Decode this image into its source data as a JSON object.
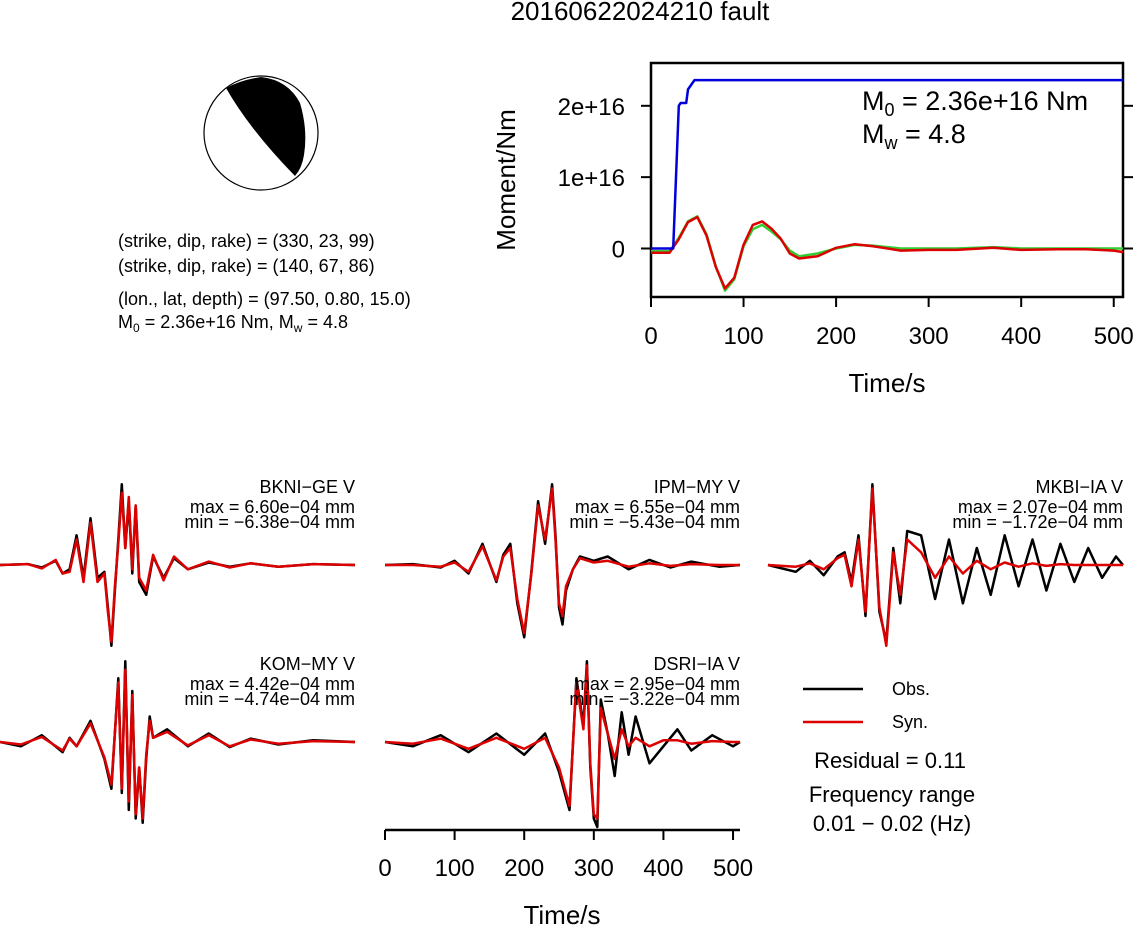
{
  "title": "20160622024210 fault",
  "mechanism": {
    "plane1": "(strike, dip, rake) = (330, 23, 99)",
    "plane2": "(strike, dip, rake) = (140, 67, 86)",
    "location": "(lon., lat, depth) = (97.50, 0.80, 15.0)",
    "m0_prefix": "M",
    "m0_sub": "0",
    "m0_rest": " = 2.36e+16 Nm, M",
    "mw_sub": "w",
    "mw_rest": " = 4.8"
  },
  "moment_plot": {
    "ylabel": "Moment/Nm",
    "xlabel": "Time/s",
    "m0_prefix": "M",
    "m0_sub": "0",
    "m0_rest": " = 2.36e+16 Nm",
    "mw_prefix": "M",
    "mw_sub": "w",
    "mw_rest": " = 4.8"
  },
  "wave_xlabel": "Time/s",
  "legend": {
    "obs": "Obs.",
    "syn": "Syn.",
    "residual": "Residual = 0.11",
    "freq_label": "Frequency range",
    "freq_value": "0.01 − 0.02 (Hz)"
  },
  "colors": {
    "moment": "#0000dd",
    "obs": "#000000",
    "syn": "#dd0000",
    "rate_green": "#33cc33",
    "rate_red": "#dd0000",
    "beachball": "#000000"
  },
  "stations": [
    {
      "name": "BKNI−GE V",
      "max": "max = 6.60e−04 mm",
      "min": "min = −6.38e−04 mm"
    },
    {
      "name": "IPM−MY V",
      "max": "max = 6.55e−04 mm",
      "min": "min = −5.43e−04 mm"
    },
    {
      "name": "MKBI−IA V",
      "max": "max = 2.07e−04 mm",
      "min": "min = −1.72e−04 mm"
    },
    {
      "name": "KOM−MY V",
      "max": "max = 4.42e−04 mm",
      "min": "min = −4.74e−04 mm"
    },
    {
      "name": "DSRI−IA V",
      "max": "max = 2.95e−04 mm",
      "min": "min = −3.22e−04 mm"
    }
  ],
  "chart_data": [
    {
      "type": "line",
      "title": "",
      "xlabel": "Time/s",
      "ylabel": "Moment/Nm",
      "xlim": [
        0,
        510
      ],
      "ylim": [
        -6800000000000000.0,
        2.6e+16
      ],
      "x_ticks": [
        0,
        100,
        200,
        300,
        400,
        500
      ],
      "y_ticks": [
        0,
        1e+16,
        2e+16
      ],
      "y_tick_labels": [
        "0",
        "1e+16",
        "2e+16"
      ],
      "series": [
        {
          "name": "cumulative moment",
          "color": "#0000dd",
          "x": [
            0,
            24,
            30,
            32,
            38,
            40,
            47,
            49,
            510
          ],
          "y": [
            0,
            0,
            2e+16,
            2.04e+16,
            2.04e+16,
            2.23e+16,
            2.36e+16,
            2.36e+16,
            2.36e+16
          ]
        },
        {
          "name": "moment rate (green)",
          "color": "#33cc33",
          "x": [
            0,
            20,
            30,
            40,
            50,
            60,
            70,
            80,
            90,
            100,
            110,
            120,
            130,
            140,
            150,
            160,
            180,
            200,
            220,
            240,
            270,
            300,
            330,
            370,
            400,
            440,
            470,
            510
          ],
          "y": [
            -400000000000000.0,
            -400000000000000.0,
            1500000000000000.0,
            3800000000000000.0,
            4500000000000000.0,
            2000000000000000.0,
            -2500000000000000.0,
            -5900000000000000.0,
            -4300000000000000.0,
            300000000000000.0,
            2700000000000000.0,
            3300000000000000.0,
            2400000000000000.0,
            1300000000000000.0,
            -300000000000000.0,
            -1100000000000000.0,
            -700000000000000.0,
            0.0,
            500000000000000.0,
            400000000000000.0,
            0.0,
            0.0,
            0.0,
            200000000000000.0,
            0.0,
            0.0,
            0.0,
            0.0
          ]
        },
        {
          "name": "moment rate (red)",
          "color": "#dd0000",
          "x": [
            0,
            20,
            30,
            40,
            50,
            60,
            70,
            80,
            90,
            100,
            110,
            120,
            130,
            140,
            150,
            160,
            180,
            200,
            220,
            240,
            270,
            300,
            330,
            370,
            400,
            440,
            470,
            500,
            510
          ],
          "y": [
            -600000000000000.0,
            -600000000000000.0,
            1300000000000000.0,
            3700000000000000.0,
            4400000000000000.0,
            1800000000000000.0,
            -2600000000000000.0,
            -5600000000000000.0,
            -4100000000000000.0,
            500000000000000.0,
            3300000000000000.0,
            3800000000000000.0,
            2800000000000000.0,
            1400000000000000.0,
            -700000000000000.0,
            -1400000000000000.0,
            -1100000000000000.0,
            100000000000000.0,
            600000000000000.0,
            300000000000000.0,
            -300000000000000.0,
            -200000000000000.0,
            -200000000000000.0,
            100000000000000.0,
            -200000000000000.0,
            -100000000000000.0,
            -100000000000000.0,
            -300000000000000.0,
            -500000000000000.0
          ]
        }
      ]
    },
    {
      "type": "line",
      "title": "",
      "xlabel": "Time/s",
      "ylabel": "",
      "xlim": [
        0,
        510
      ],
      "x_ticks": [
        0,
        100,
        200,
        300,
        400,
        500
      ],
      "panels": [
        {
          "station": "BKNI−GE V",
          "max": 0.00066,
          "min": -0.000638,
          "x": [
            0,
            40,
            60,
            80,
            90,
            100,
            110,
            120,
            130,
            140,
            150,
            155,
            160,
            165,
            170,
            175,
            180,
            185,
            190,
            195,
            200,
            210,
            220,
            235,
            250,
            270,
            300,
            330,
            360,
            400,
            450,
            510
          ],
          "obs": [
            0,
            0.01,
            -0.03,
            0.05,
            -0.1,
            -0.05,
            0.35,
            -0.15,
            0.55,
            -0.15,
            -0.08,
            -0.5,
            -0.95,
            -0.3,
            0.3,
            0.95,
            0.2,
            0.75,
            -0.1,
            0.7,
            -0.2,
            -0.35,
            0.1,
            -0.15,
            0.08,
            -0.05,
            0.03,
            -0.02,
            0.02,
            -0.02,
            0.01,
            0
          ],
          "syn": [
            0,
            0.01,
            -0.04,
            0.06,
            -0.1,
            -0.08,
            0.3,
            -0.2,
            0.5,
            -0.2,
            -0.1,
            -0.55,
            -0.9,
            -0.25,
            0.25,
            0.85,
            0.2,
            0.8,
            -0.05,
            0.7,
            -0.15,
            -0.3,
            0.12,
            -0.18,
            0.1,
            -0.05,
            0.04,
            -0.03,
            0.02,
            -0.02,
            0.01,
            0
          ]
        },
        {
          "station": "IPM−MY V",
          "max": 0.000655,
          "min": -0.000543,
          "x": [
            0,
            40,
            80,
            100,
            120,
            140,
            160,
            170,
            180,
            190,
            200,
            210,
            220,
            230,
            240,
            245,
            250,
            255,
            260,
            270,
            280,
            300,
            320,
            350,
            380,
            410,
            440,
            480,
            510
          ],
          "obs": [
            0,
            0.01,
            -0.03,
            0.05,
            -0.1,
            0.25,
            -0.2,
            0.12,
            0.25,
            -0.45,
            -0.85,
            -0.1,
            0.75,
            0.25,
            0.95,
            0.35,
            -0.5,
            -0.7,
            -0.3,
            -0.05,
            0.1,
            0.05,
            0.1,
            -0.05,
            0.06,
            -0.03,
            0.04,
            -0.02,
            0
          ],
          "syn": [
            0,
            0.0,
            -0.02,
            0.03,
            -0.08,
            0.22,
            -0.18,
            0.1,
            0.2,
            -0.4,
            -0.8,
            -0.12,
            0.7,
            0.3,
            0.9,
            0.3,
            -0.45,
            -0.6,
            -0.25,
            -0.05,
            0.08,
            0.03,
            0.05,
            -0.02,
            0.02,
            -0.01,
            0.01,
            0.0,
            0
          ]
        },
        {
          "station": "MKBI−IA V",
          "max": 0.000207,
          "min": -0.000172,
          "x": [
            0,
            40,
            60,
            80,
            100,
            110,
            120,
            130,
            140,
            150,
            160,
            170,
            180,
            190,
            200,
            220,
            240,
            260,
            280,
            300,
            320,
            340,
            360,
            380,
            400,
            420,
            440,
            460,
            480,
            500,
            510
          ],
          "obs": [
            0,
            -0.08,
            0.05,
            -0.12,
            0.1,
            0.15,
            -0.2,
            0.35,
            -0.6,
            0.95,
            -0.55,
            -0.9,
            0.2,
            -0.45,
            0.4,
            0.35,
            -0.4,
            0.3,
            -0.45,
            0.2,
            -0.35,
            0.35,
            -0.25,
            0.3,
            -0.3,
            0.25,
            -0.2,
            0.2,
            -0.15,
            0.1,
            0
          ],
          "syn": [
            0,
            -0.02,
            0.02,
            -0.05,
            0.08,
            0.12,
            -0.25,
            0.3,
            -0.55,
            0.9,
            -0.5,
            -0.95,
            0.15,
            -0.35,
            0.3,
            0.15,
            -0.15,
            0.1,
            -0.1,
            0.05,
            -0.05,
            0.03,
            -0.02,
            0.02,
            -0.01,
            0.01,
            0.0,
            0.0,
            0.0,
            0.0,
            0
          ]
        },
        {
          "station": "KOM−MY V",
          "max": 0.000442,
          "min": -0.000474,
          "x": [
            0,
            30,
            60,
            90,
            100,
            110,
            130,
            150,
            160,
            170,
            175,
            180,
            185,
            190,
            195,
            200,
            205,
            210,
            215,
            220,
            240,
            270,
            300,
            330,
            360,
            400,
            450,
            510
          ],
          "obs": [
            0,
            -0.05,
            0.08,
            -0.12,
            0.05,
            -0.05,
            0.25,
            -0.2,
            -0.55,
            0.75,
            -0.6,
            0.95,
            -0.8,
            0.6,
            -0.9,
            -0.3,
            -0.95,
            -0.2,
            0.3,
            0.05,
            0.15,
            -0.05,
            0.1,
            -0.06,
            0.04,
            -0.03,
            0.02,
            0
          ],
          "syn": [
            0,
            -0.03,
            0.06,
            -0.1,
            0.04,
            -0.05,
            0.22,
            -0.18,
            -0.5,
            0.7,
            -0.55,
            0.85,
            -0.7,
            0.55,
            -0.85,
            -0.3,
            -0.9,
            -0.15,
            0.25,
            0.05,
            0.12,
            -0.04,
            0.08,
            -0.05,
            0.03,
            -0.02,
            0.01,
            0
          ]
        },
        {
          "station": "DSRI−IA V",
          "max": 0.000295,
          "min": -0.000322,
          "x": [
            0,
            40,
            80,
            120,
            160,
            200,
            230,
            250,
            265,
            275,
            285,
            290,
            295,
            300,
            305,
            310,
            320,
            330,
            340,
            350,
            360,
            380,
            400,
            420,
            440,
            470,
            500,
            510
          ],
          "obs": [
            0,
            -0.05,
            0.08,
            -0.12,
            0.1,
            -0.15,
            0.1,
            -0.35,
            -0.8,
            0.75,
            0.2,
            0.95,
            -0.3,
            -0.9,
            -1.0,
            0.5,
            0.1,
            -0.4,
            0.35,
            -0.15,
            0.3,
            -0.25,
            -0.05,
            0.15,
            -0.1,
            0.08,
            -0.05,
            0
          ],
          "syn": [
            0,
            -0.02,
            0.04,
            -0.08,
            0.05,
            -0.08,
            0.05,
            -0.3,
            -0.75,
            0.7,
            0.15,
            0.9,
            -0.25,
            -0.85,
            -0.9,
            0.4,
            0.1,
            -0.2,
            0.15,
            -0.05,
            0.05,
            -0.05,
            0.02,
            0.02,
            -0.02,
            0.01,
            0.0,
            0
          ]
        }
      ]
    }
  ]
}
